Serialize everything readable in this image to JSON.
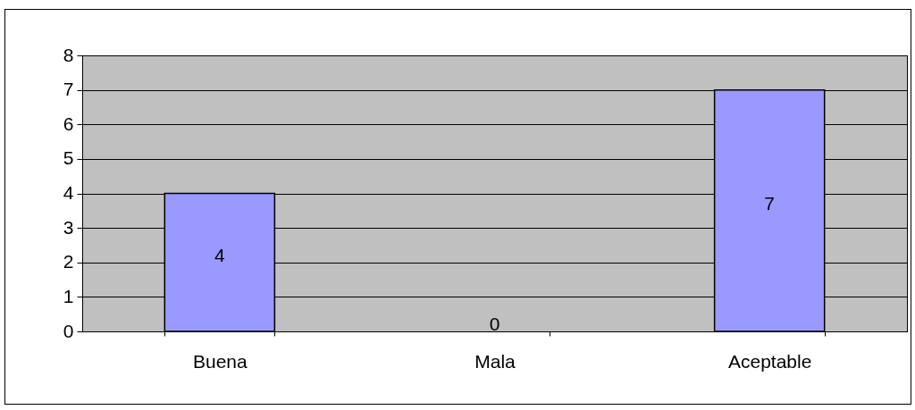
{
  "chart_data": {
    "type": "bar",
    "categories": [
      "Buena",
      "Mala",
      "Aceptable"
    ],
    "values": [
      4,
      0,
      7
    ],
    "color": "#9999ff",
    "ylim": [
      0,
      8
    ],
    "yticks": [
      0,
      1,
      2,
      3,
      4,
      5,
      6,
      7,
      8
    ],
    "grid": "y",
    "data_labels": true
  }
}
